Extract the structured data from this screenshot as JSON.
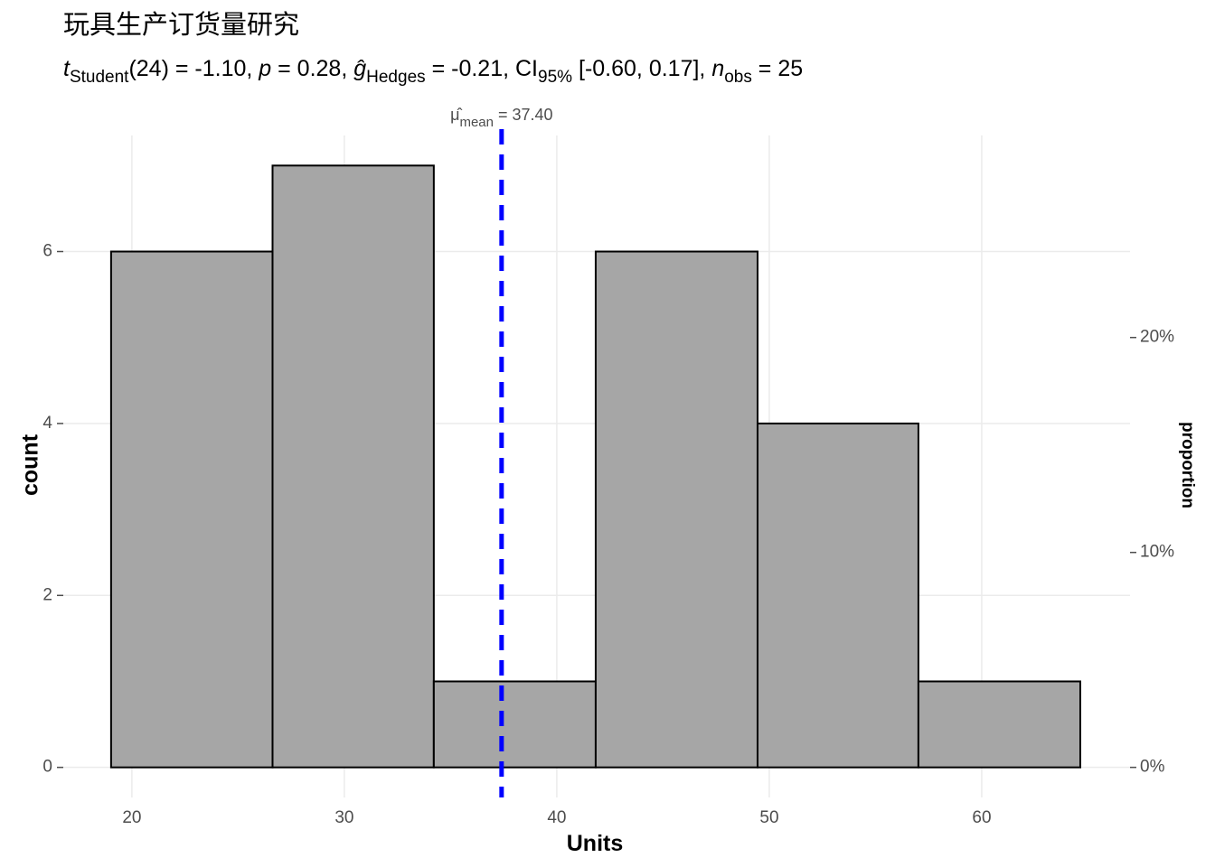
{
  "chart_data": {
    "type": "histogram",
    "title": "玩具生产订货量研究",
    "subtitle": [
      {
        "text": "t",
        "style": "italic"
      },
      {
        "text": "Student",
        "style": "sub"
      },
      {
        "text": "(24) = -1.10, "
      },
      {
        "text": "p",
        "style": "italic"
      },
      {
        "text": " = 0.28, "
      },
      {
        "text": "ĝ",
        "style": "italic"
      },
      {
        "text": "Hedges",
        "style": "sub"
      },
      {
        "text": " = -0.21, CI"
      },
      {
        "text": "95%",
        "style": "sub"
      },
      {
        "text": " [-0.60, 0.17], "
      },
      {
        "text": "n",
        "style": "italic"
      },
      {
        "text": "obs",
        "style": "sub"
      },
      {
        "text": " = 25"
      }
    ],
    "x_label": "Units",
    "y_label": "count",
    "y2_label": "proportion",
    "bins": [
      19.02,
      26.62,
      34.21,
      41.83,
      49.45,
      57.02,
      64.64
    ],
    "values": [
      6,
      7,
      1,
      6,
      4,
      1
    ],
    "color": "#a6a6a6",
    "edge_color": "#000000",
    "xlim": [
      16.77,
      66.98
    ],
    "xticks": [
      20,
      30,
      40,
      50,
      60
    ],
    "ylim": [
      -0.35,
      7.35
    ],
    "yticks": [
      0,
      2,
      4,
      6
    ],
    "y2lim": [
      -1.4,
      29.4
    ],
    "y2ticks": [
      {
        "value": 0,
        "label": "0%"
      },
      {
        "value": 10,
        "label": "10%"
      },
      {
        "value": 20,
        "label": "20%"
      }
    ],
    "grid": true,
    "mean_line": {
      "value": 37.4,
      "color": "#0000ff",
      "label": [
        {
          "text": "μ̂"
        },
        {
          "text": "mean",
          "style": "sub"
        },
        {
          "text": " = 37.40"
        }
      ]
    }
  }
}
